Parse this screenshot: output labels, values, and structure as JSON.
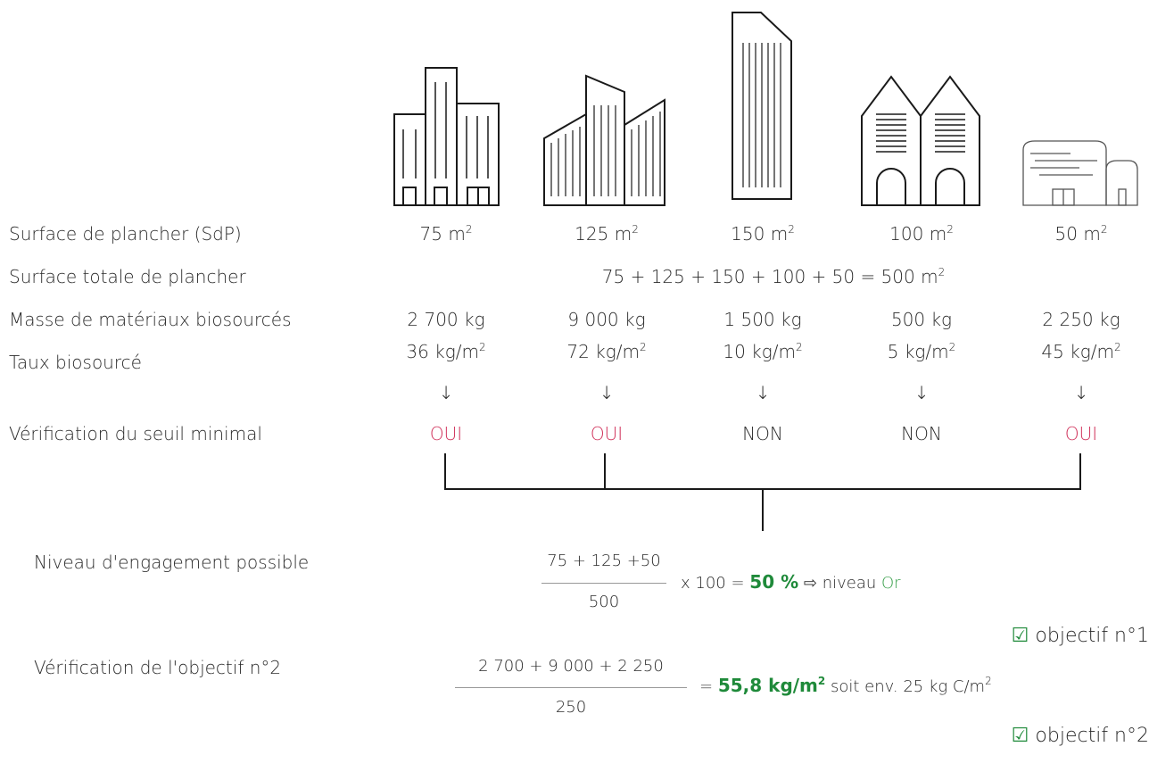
{
  "rows": {
    "sdp": "Surface de plancher (SdP)",
    "total": "Surface totale de plancher",
    "masse": "Masse de matériaux biosourcés",
    "taux": "Taux biosourcé",
    "verif": "Vérification du seuil minimal",
    "niveau": "Niveau d'engagement possible",
    "obj2": "Vérification de l'objectif n°2"
  },
  "buildings": [
    {
      "icon": "office-towers-icon",
      "surface": "75 m",
      "masse": "2 700 kg",
      "taux": "36 kg/m",
      "verif": "OUI",
      "ok": true
    },
    {
      "icon": "modern-towers-icon",
      "surface": "125 m",
      "masse": "9 000 kg",
      "taux": "72 kg/m",
      "verif": "OUI",
      "ok": true
    },
    {
      "icon": "skyscraper-icon",
      "surface": "150 m",
      "masse": "1 500 kg",
      "taux": "10 kg/m",
      "verif": "NON",
      "ok": false
    },
    {
      "icon": "twin-houses-icon",
      "surface": "100 m",
      "masse": "500 kg",
      "taux": "5 kg/m",
      "verif": "NON",
      "ok": false
    },
    {
      "icon": "low-building-icon",
      "surface": "50 m",
      "masse": "2 250 kg",
      "taux": "45 kg/m",
      "verif": "OUI",
      "ok": true
    }
  ],
  "arrow": "↓",
  "sup2": "2",
  "total_formula": "75 + 125 + 150 + 100 + 50 = 500 m",
  "niveau": {
    "numerator": "75 + 125 +50",
    "denominator": "500",
    "mult": "x 100 =",
    "percent": "50 %",
    "arrow": "⇨",
    "text": "niveau",
    "level": "Or"
  },
  "objectif1": "objectif n°1",
  "obj2": {
    "numerator": "2 700 + 9 000 + 2 250",
    "denominator": "250",
    "eq": "=",
    "result": "55,8 kg/m",
    "rest": "soit env. 25 kg C/m"
  },
  "objectif2": "objectif n°2",
  "colors": {
    "oui": "#d0315a",
    "green": "#1f8a3a",
    "or": "#3aa04c"
  }
}
